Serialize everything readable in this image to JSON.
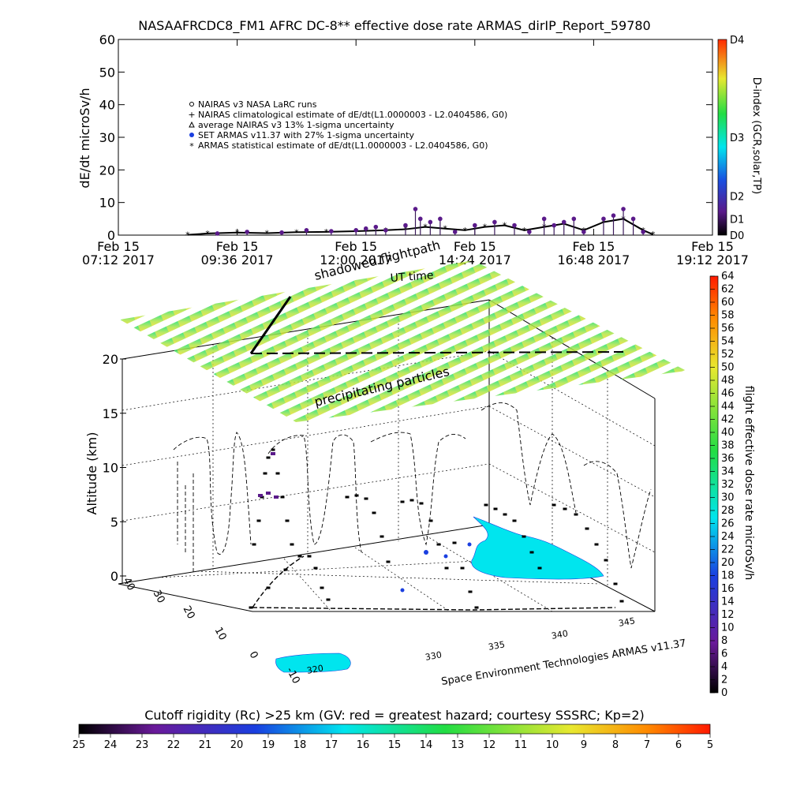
{
  "title": "NASAAFRCDC8_FM1 AFRC DC-8** effective dose rate ARMAS_dirIP_Report_59780",
  "chart_data": [
    {
      "type": "scatter",
      "name": "dose-rate-timeseries",
      "ylabel": "dE/dt microSv/h",
      "xlabel": "UT time",
      "ylim": [
        0,
        60
      ],
      "yticks": [
        0,
        10,
        20,
        30,
        40,
        50,
        60
      ],
      "xticks": [
        [
          "Feb 15",
          "07:12 2017"
        ],
        [
          "Feb 15",
          "09:36 2017"
        ],
        [
          "Feb 15",
          "12:00 2017"
        ],
        [
          "Feb 15",
          "14:24 2017"
        ],
        [
          "Feb 15",
          "16:48 2017"
        ],
        [
          "Feb 15",
          "19:12 2017"
        ]
      ],
      "xlim_hours": [
        7.2,
        19.2
      ],
      "legend": [
        "NAIRAS v3 NASA LaRC runs",
        "NAIRAS climatological estimate of dE/dt(L1.0000003 - L2.0404586, G0)",
        "average NAIRAS v3 13% 1-sigma uncertainty",
        "SET ARMAS v11.37 with 27% 1-sigma uncertainty",
        "ARMAS statistical estimate of dE/dt(L1.0000003 - L2.0404586, G0)"
      ],
      "legend_position": "upper-left",
      "series": [
        {
          "name": "SET ARMAS v11.37 with 27% 1-sigma uncertainty",
          "x": [
            9.2,
            9.8,
            10.5,
            11.0,
            11.5,
            12.0,
            12.2,
            12.4,
            12.6,
            13.0,
            13.2,
            13.3,
            13.5,
            13.7,
            14.0,
            14.4,
            14.8,
            15.2,
            15.5,
            15.8,
            16.0,
            16.2,
            16.4,
            16.6,
            17.0,
            17.2,
            17.4,
            17.6,
            17.8
          ],
          "y": [
            0.5,
            1.0,
            0.8,
            1.5,
            1.2,
            1.5,
            2.0,
            2.5,
            1.5,
            3.0,
            8.0,
            5.0,
            4.0,
            5.0,
            1.0,
            3.0,
            4.0,
            3.0,
            1.0,
            5.0,
            3.0,
            4.0,
            5.0,
            1.0,
            5.0,
            6.0,
            8.0,
            5.0,
            1.0
          ]
        },
        {
          "name": "ARMAS statistical estimate of dE/dt(L1.0000003 - L2.0404586, G0)",
          "x": [
            8.6,
            9.0,
            9.6,
            10.2,
            10.8,
            11.4,
            12.0,
            12.6,
            13.0,
            13.4,
            13.8,
            14.2,
            14.6,
            15.0,
            15.4,
            15.8,
            16.2,
            16.6,
            17.0,
            17.4,
            17.8,
            18.0
          ],
          "y": [
            0.1,
            0.5,
            0.8,
            0.6,
            0.9,
            1.0,
            1.2,
            1.5,
            1.8,
            2.5,
            2.0,
            1.5,
            2.5,
            3.0,
            1.5,
            2.5,
            3.5,
            1.5,
            4.0,
            5.0,
            1.5,
            0.2
          ]
        }
      ],
      "side_colorbar": {
        "label": "D-index (GCR,solar,TP)",
        "ticks": [
          "D0",
          "D1",
          "D2",
          "D3",
          "D4"
        ]
      }
    },
    {
      "type": "heatmap",
      "name": "3d-flight-track",
      "zlabel": "Altitude (km)",
      "zlim": [
        0,
        20
      ],
      "zticks": [
        0,
        5,
        10,
        15,
        20
      ],
      "latitude_ticks": [
        -10,
        0,
        10,
        20,
        30,
        40
      ],
      "longitude_ticks": [
        320,
        330,
        335,
        340,
        345
      ],
      "annotations": [
        "shadowed flightpath",
        "UT time",
        "precipitating particles"
      ],
      "credit": "Space Environment Technologies ARMAS v11.37",
      "right_colorbar": {
        "label": "flight effective dose rate microSv/h",
        "min": 0,
        "max": 64,
        "ticks": [
          0,
          2,
          4,
          6,
          8,
          10,
          12,
          14,
          16,
          18,
          20,
          22,
          24,
          26,
          28,
          30,
          32,
          34,
          36,
          38,
          40,
          42,
          44,
          46,
          48,
          50,
          52,
          54,
          56,
          58,
          60,
          62,
          64
        ]
      },
      "bottom_colorbar": {
        "label": "Cutoff rigidity (Rc) >25 km (GV: red = greatest hazard; courtesy SSSRC; Kp=2)",
        "ticks": [
          25,
          24,
          23,
          22,
          21,
          20,
          19,
          18,
          17,
          16,
          15,
          14,
          13,
          12,
          11,
          10,
          9,
          8,
          7,
          6,
          5
        ]
      }
    }
  ]
}
